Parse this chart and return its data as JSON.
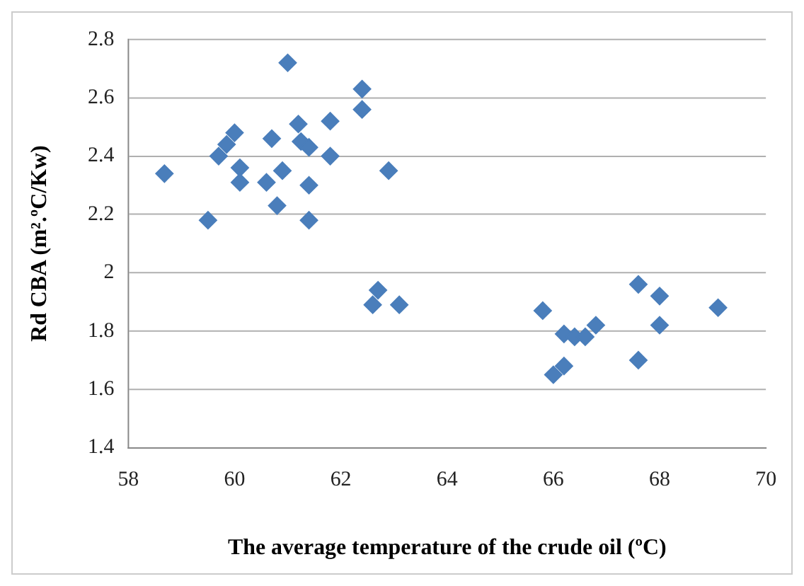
{
  "chart_data": {
    "type": "scatter",
    "xlabel": "The average temperature of the crude oil (ºC)",
    "ylabel": "Rd CBA (m².ºC/Kw)",
    "x": [
      58.68,
      59.5,
      59.7,
      59.85,
      60.0,
      60.1,
      60.1,
      60.6,
      60.7,
      60.8,
      60.9,
      61.0,
      61.2,
      61.25,
      61.4,
      61.4,
      61.4,
      61.8,
      61.8,
      62.4,
      62.4,
      62.9,
      62.7,
      62.6,
      63.1,
      65.8,
      66.0,
      66.2,
      66.2,
      66.4,
      66.6,
      66.8,
      67.6,
      68.0,
      68.0,
      67.6,
      69.1
    ],
    "series": [
      {
        "color": "#4a7ebb",
        "values": [
          2.34,
          2.18,
          2.4,
          2.44,
          2.48,
          2.36,
          2.31,
          2.31,
          2.46,
          2.23,
          2.35,
          2.72,
          2.51,
          2.45,
          2.43,
          2.3,
          2.18,
          2.52,
          2.4,
          2.63,
          2.56,
          2.35,
          1.94,
          1.89,
          1.89,
          1.87,
          1.65,
          1.68,
          1.79,
          1.78,
          1.78,
          1.82,
          1.96,
          1.92,
          1.82,
          1.7,
          1.88
        ]
      }
    ],
    "xlim": [
      58,
      70
    ],
    "xticks": [
      58,
      60,
      62,
      64,
      66,
      68,
      70
    ],
    "ylim": [
      1.4,
      2.8
    ],
    "yticks": [
      1.4,
      1.6,
      1.8,
      2,
      2.2,
      2.4,
      2.6,
      2.8
    ],
    "grid": "y",
    "legend": false,
    "marker": "diamond"
  }
}
